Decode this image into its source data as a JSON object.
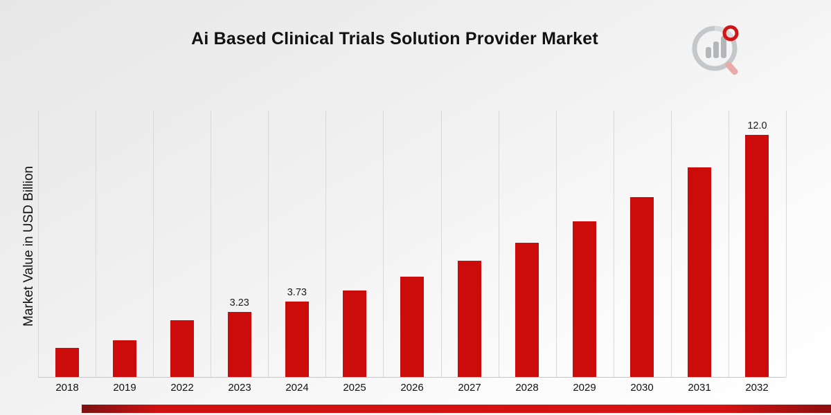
{
  "page": {
    "title": "Ai Based Clinical Trials Solution Provider Market"
  },
  "axes": {
    "y_label": "Market Value in USD Billion"
  },
  "branding": {
    "logo_icon": "market-research-magnifier-bar-logo"
  },
  "colors": {
    "bar": "#cc0b0b",
    "bottom_stripe": "#d81212",
    "gridline": "#d8d8d8",
    "background_top": "#e7e7e7",
    "background_bottom": "#ffffff"
  },
  "chart_data": {
    "type": "bar",
    "title": "Ai Based Clinical Trials Solution Provider Market",
    "xlabel": "",
    "ylabel": "Market Value in USD Billion",
    "categories": [
      "2018",
      "2019",
      "2022",
      "2023",
      "2024",
      "2025",
      "2026",
      "2027",
      "2028",
      "2029",
      "2030",
      "2031",
      "2032"
    ],
    "values": [
      1.44,
      1.82,
      2.8,
      3.23,
      3.73,
      4.28,
      4.97,
      5.75,
      6.65,
      7.7,
      8.9,
      10.4,
      12.0
    ],
    "data_labels": [
      "",
      "",
      "",
      "3.23",
      "3.73",
      "",
      "",
      "",
      "",
      "",
      "",
      "",
      "12.0"
    ],
    "ylim": [
      0,
      13.2
    ],
    "grid": "vertical-only",
    "legend": "none",
    "bar_color": "#cc0b0b"
  }
}
